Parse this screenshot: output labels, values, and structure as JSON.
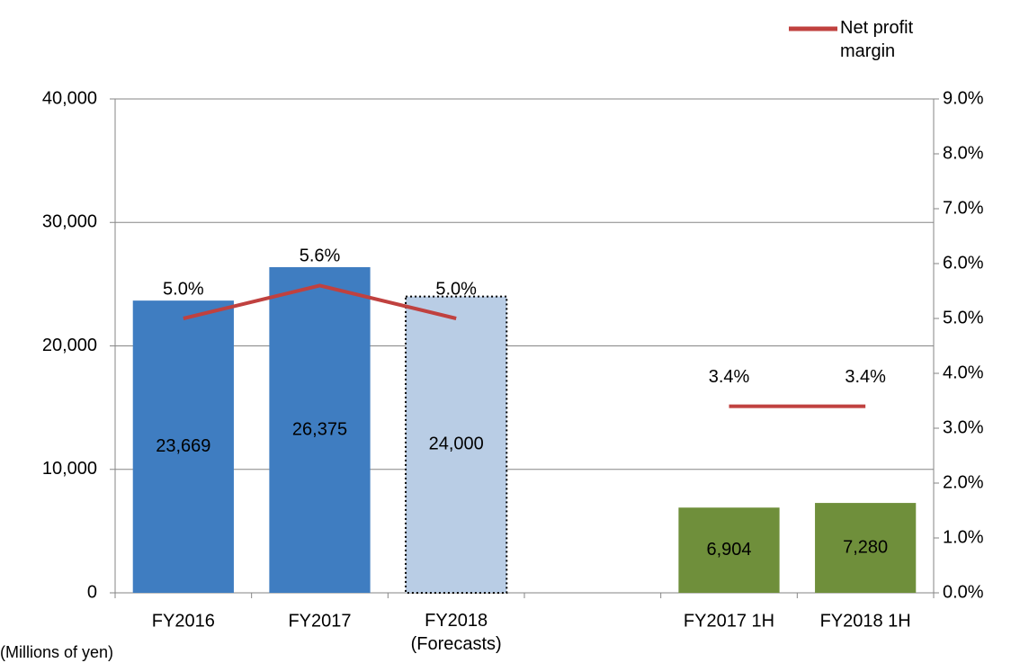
{
  "chart_data": {
    "type": "bar_line",
    "categories": [
      "FY2016",
      "FY2017",
      "FY2018\n(Forecasts)",
      null,
      "FY2017 1H",
      "FY2018 1H"
    ],
    "values": [
      23669,
      26375,
      24000,
      null,
      6904,
      7280
    ],
    "value_labels": [
      "23,669",
      "26,375",
      "24,000",
      null,
      "6,904",
      "7,280"
    ],
    "colors": [
      "#3f7dc1",
      "#3f7dc1",
      "#b9cde5",
      null,
      "#6f8f3b",
      "#6f8f3b"
    ],
    "dotted_border": [
      false,
      false,
      true,
      null,
      false,
      false
    ],
    "series": [
      {
        "name": "Net profit\nmargin",
        "color": "#c0413f",
        "axis": "y2",
        "values": [
          5.0,
          5.6,
          5.0,
          null,
          3.4,
          3.4
        ],
        "value_labels": [
          "5.0%",
          "5.6%",
          "5.0%",
          null,
          "3.4%",
          "3.4%"
        ]
      }
    ],
    "ylim": [
      0,
      40000
    ],
    "yticks": [
      0,
      {
        "value": 10000,
        "label": "10,000"
      },
      {
        "value": 20000,
        "label": "20,000"
      },
      {
        "value": 30000,
        "label": "30,000"
      },
      {
        "value": 40000,
        "label": "40,000"
      }
    ],
    "y2lim": [
      0,
      9
    ],
    "y2ticks": [
      {
        "value": 0,
        "label": "0.0%"
      },
      {
        "value": 1,
        "label": "1.0%"
      },
      {
        "value": 2,
        "label": "2.0%"
      },
      {
        "value": 3,
        "label": "3.0%"
      },
      {
        "value": 4,
        "label": "4.0%"
      },
      {
        "value": 5,
        "label": "5.0%"
      },
      {
        "value": 6,
        "label": "6.0%"
      },
      {
        "value": 7,
        "label": "7.0%"
      },
      {
        "value": 8,
        "label": "8.0%"
      },
      {
        "value": 9,
        "label": "9.0%"
      }
    ],
    "y_label": "(Millions of yen)",
    "grid": true,
    "legend": "top-right"
  }
}
